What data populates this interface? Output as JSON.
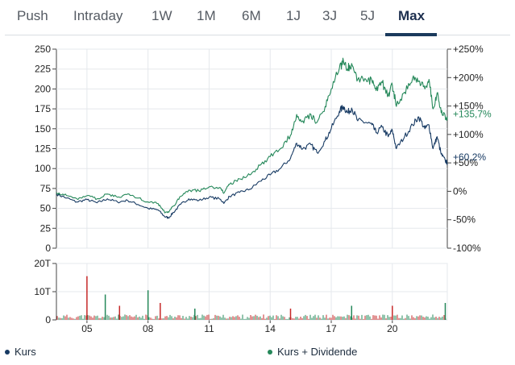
{
  "tabs": [
    {
      "label": "Push",
      "active": false
    },
    {
      "label": "Intraday",
      "active": false
    },
    {
      "label": "1W",
      "active": false
    },
    {
      "label": "1M",
      "active": false
    },
    {
      "label": "6M",
      "active": false
    },
    {
      "label": "1J",
      "active": false
    },
    {
      "label": "3J",
      "active": false
    },
    {
      "label": "5J",
      "active": false
    },
    {
      "label": "Max",
      "active": true
    }
  ],
  "colors": {
    "kurs": "#173a63",
    "kurs_dividende": "#25885a",
    "volume_red": "#c62828",
    "grid": "#e5e8ec",
    "axis": "#555555"
  },
  "legend": [
    {
      "label": "Kurs",
      "color": "#173a63"
    },
    {
      "label": "Kurs + Dividende",
      "color": "#25885a"
    }
  ],
  "chart_data": [
    {
      "type": "line",
      "x_ticks": [
        "05",
        "08",
        "11",
        "14",
        "17",
        "20"
      ],
      "x_range": [
        2003.5,
        2022.7
      ],
      "ylim": [
        0,
        250
      ],
      "y_ticks": [
        "250",
        "225",
        "200",
        "175",
        "150",
        "125",
        "100",
        "75",
        "50",
        "25",
        "0"
      ],
      "y2_ticks": [
        "+250%",
        "+200%",
        "+150%",
        "+100%",
        "+50%",
        "0%",
        "-50%",
        "-100%"
      ],
      "y2_range": [
        -100,
        250
      ],
      "end_labels": [
        "+135,7%",
        "+60,2%"
      ],
      "grid": true,
      "series": [
        {
          "name": "Kurs",
          "color": "#173a63",
          "points": [
            [
              2003.5,
              68
            ],
            [
              2004.0,
              63
            ],
            [
              2004.5,
              58
            ],
            [
              2005.0,
              61
            ],
            [
              2005.5,
              57
            ],
            [
              2006.0,
              62
            ],
            [
              2006.5,
              58
            ],
            [
              2007.0,
              60
            ],
            [
              2007.5,
              55
            ],
            [
              2008.0,
              50
            ],
            [
              2008.5,
              48
            ],
            [
              2008.8,
              40
            ],
            [
              2009.0,
              38
            ],
            [
              2009.25,
              45
            ],
            [
              2009.6,
              55
            ],
            [
              2010.0,
              62
            ],
            [
              2010.5,
              60
            ],
            [
              2011.0,
              64
            ],
            [
              2011.5,
              62
            ],
            [
              2011.75,
              57
            ],
            [
              2012.0,
              65
            ],
            [
              2012.5,
              70
            ],
            [
              2013.0,
              74
            ],
            [
              2013.5,
              84
            ],
            [
              2014.0,
              92
            ],
            [
              2014.5,
              100
            ],
            [
              2015.0,
              113
            ],
            [
              2015.3,
              132
            ],
            [
              2015.6,
              125
            ],
            [
              2016.0,
              130
            ],
            [
              2016.3,
              120
            ],
            [
              2016.7,
              135
            ],
            [
              2017.0,
              150
            ],
            [
              2017.4,
              172
            ],
            [
              2017.6,
              178
            ],
            [
              2017.8,
              170
            ],
            [
              2018.0,
              176
            ],
            [
              2018.3,
              160
            ],
            [
              2018.7,
              158
            ],
            [
              2019.0,
              155
            ],
            [
              2019.2,
              145
            ],
            [
              2019.5,
              152
            ],
            [
              2019.8,
              140
            ],
            [
              2020.0,
              148
            ],
            [
              2020.2,
              125
            ],
            [
              2020.6,
              140
            ],
            [
              2021.0,
              155
            ],
            [
              2021.3,
              165
            ],
            [
              2021.6,
              150
            ],
            [
              2021.8,
              155
            ],
            [
              2022.0,
              125
            ],
            [
              2022.2,
              140
            ],
            [
              2022.4,
              118
            ],
            [
              2022.6,
              110
            ],
            [
              2022.7,
              107
            ]
          ]
        },
        {
          "name": "Kurs + Dividende",
          "color": "#25885a",
          "points": [
            [
              2003.5,
              70
            ],
            [
              2004.0,
              66
            ],
            [
              2004.5,
              62
            ],
            [
              2005.0,
              66
            ],
            [
              2005.5,
              62
            ],
            [
              2006.0,
              68
            ],
            [
              2006.5,
              64
            ],
            [
              2007.0,
              68
            ],
            [
              2007.5,
              63
            ],
            [
              2008.0,
              58
            ],
            [
              2008.5,
              56
            ],
            [
              2008.8,
              46
            ],
            [
              2009.0,
              45
            ],
            [
              2009.25,
              53
            ],
            [
              2009.6,
              65
            ],
            [
              2010.0,
              73
            ],
            [
              2010.5,
              72
            ],
            [
              2011.0,
              77
            ],
            [
              2011.5,
              76
            ],
            [
              2011.75,
              70
            ],
            [
              2012.0,
              80
            ],
            [
              2012.5,
              87
            ],
            [
              2013.0,
              92
            ],
            [
              2013.5,
              104
            ],
            [
              2014.0,
              115
            ],
            [
              2014.5,
              125
            ],
            [
              2015.0,
              142
            ],
            [
              2015.3,
              168
            ],
            [
              2015.6,
              160
            ],
            [
              2016.0,
              168
            ],
            [
              2016.3,
              158
            ],
            [
              2016.7,
              178
            ],
            [
              2017.0,
              200
            ],
            [
              2017.4,
              226
            ],
            [
              2017.6,
              235
            ],
            [
              2017.8,
              225
            ],
            [
              2018.0,
              232
            ],
            [
              2018.3,
              212
            ],
            [
              2018.7,
              212
            ],
            [
              2019.0,
              210
            ],
            [
              2019.2,
              198
            ],
            [
              2019.5,
              208
            ],
            [
              2019.8,
              192
            ],
            [
              2020.0,
              205
            ],
            [
              2020.2,
              178
            ],
            [
              2020.6,
              196
            ],
            [
              2021.0,
              214
            ],
            [
              2021.3,
              210
            ],
            [
              2021.6,
              200
            ],
            [
              2021.8,
              212
            ],
            [
              2022.0,
              175
            ],
            [
              2022.2,
              195
            ],
            [
              2022.4,
              170
            ],
            [
              2022.6,
              165
            ],
            [
              2022.7,
              163
            ]
          ]
        }
      ]
    },
    {
      "type": "bar",
      "name": "volume",
      "ylim": [
        0,
        20
      ],
      "y_ticks": [
        "20T",
        "10T",
        "0"
      ],
      "spikes": [
        [
          2005.0,
          15.5
        ],
        [
          2005.9,
          9
        ],
        [
          2006.6,
          5
        ],
        [
          2008.0,
          10.5
        ],
        [
          2008.6,
          6
        ],
        [
          2010.3,
          4
        ],
        [
          2015.0,
          4
        ],
        [
          2018.0,
          5
        ],
        [
          2020.0,
          5
        ],
        [
          2022.6,
          6
        ]
      ]
    }
  ]
}
